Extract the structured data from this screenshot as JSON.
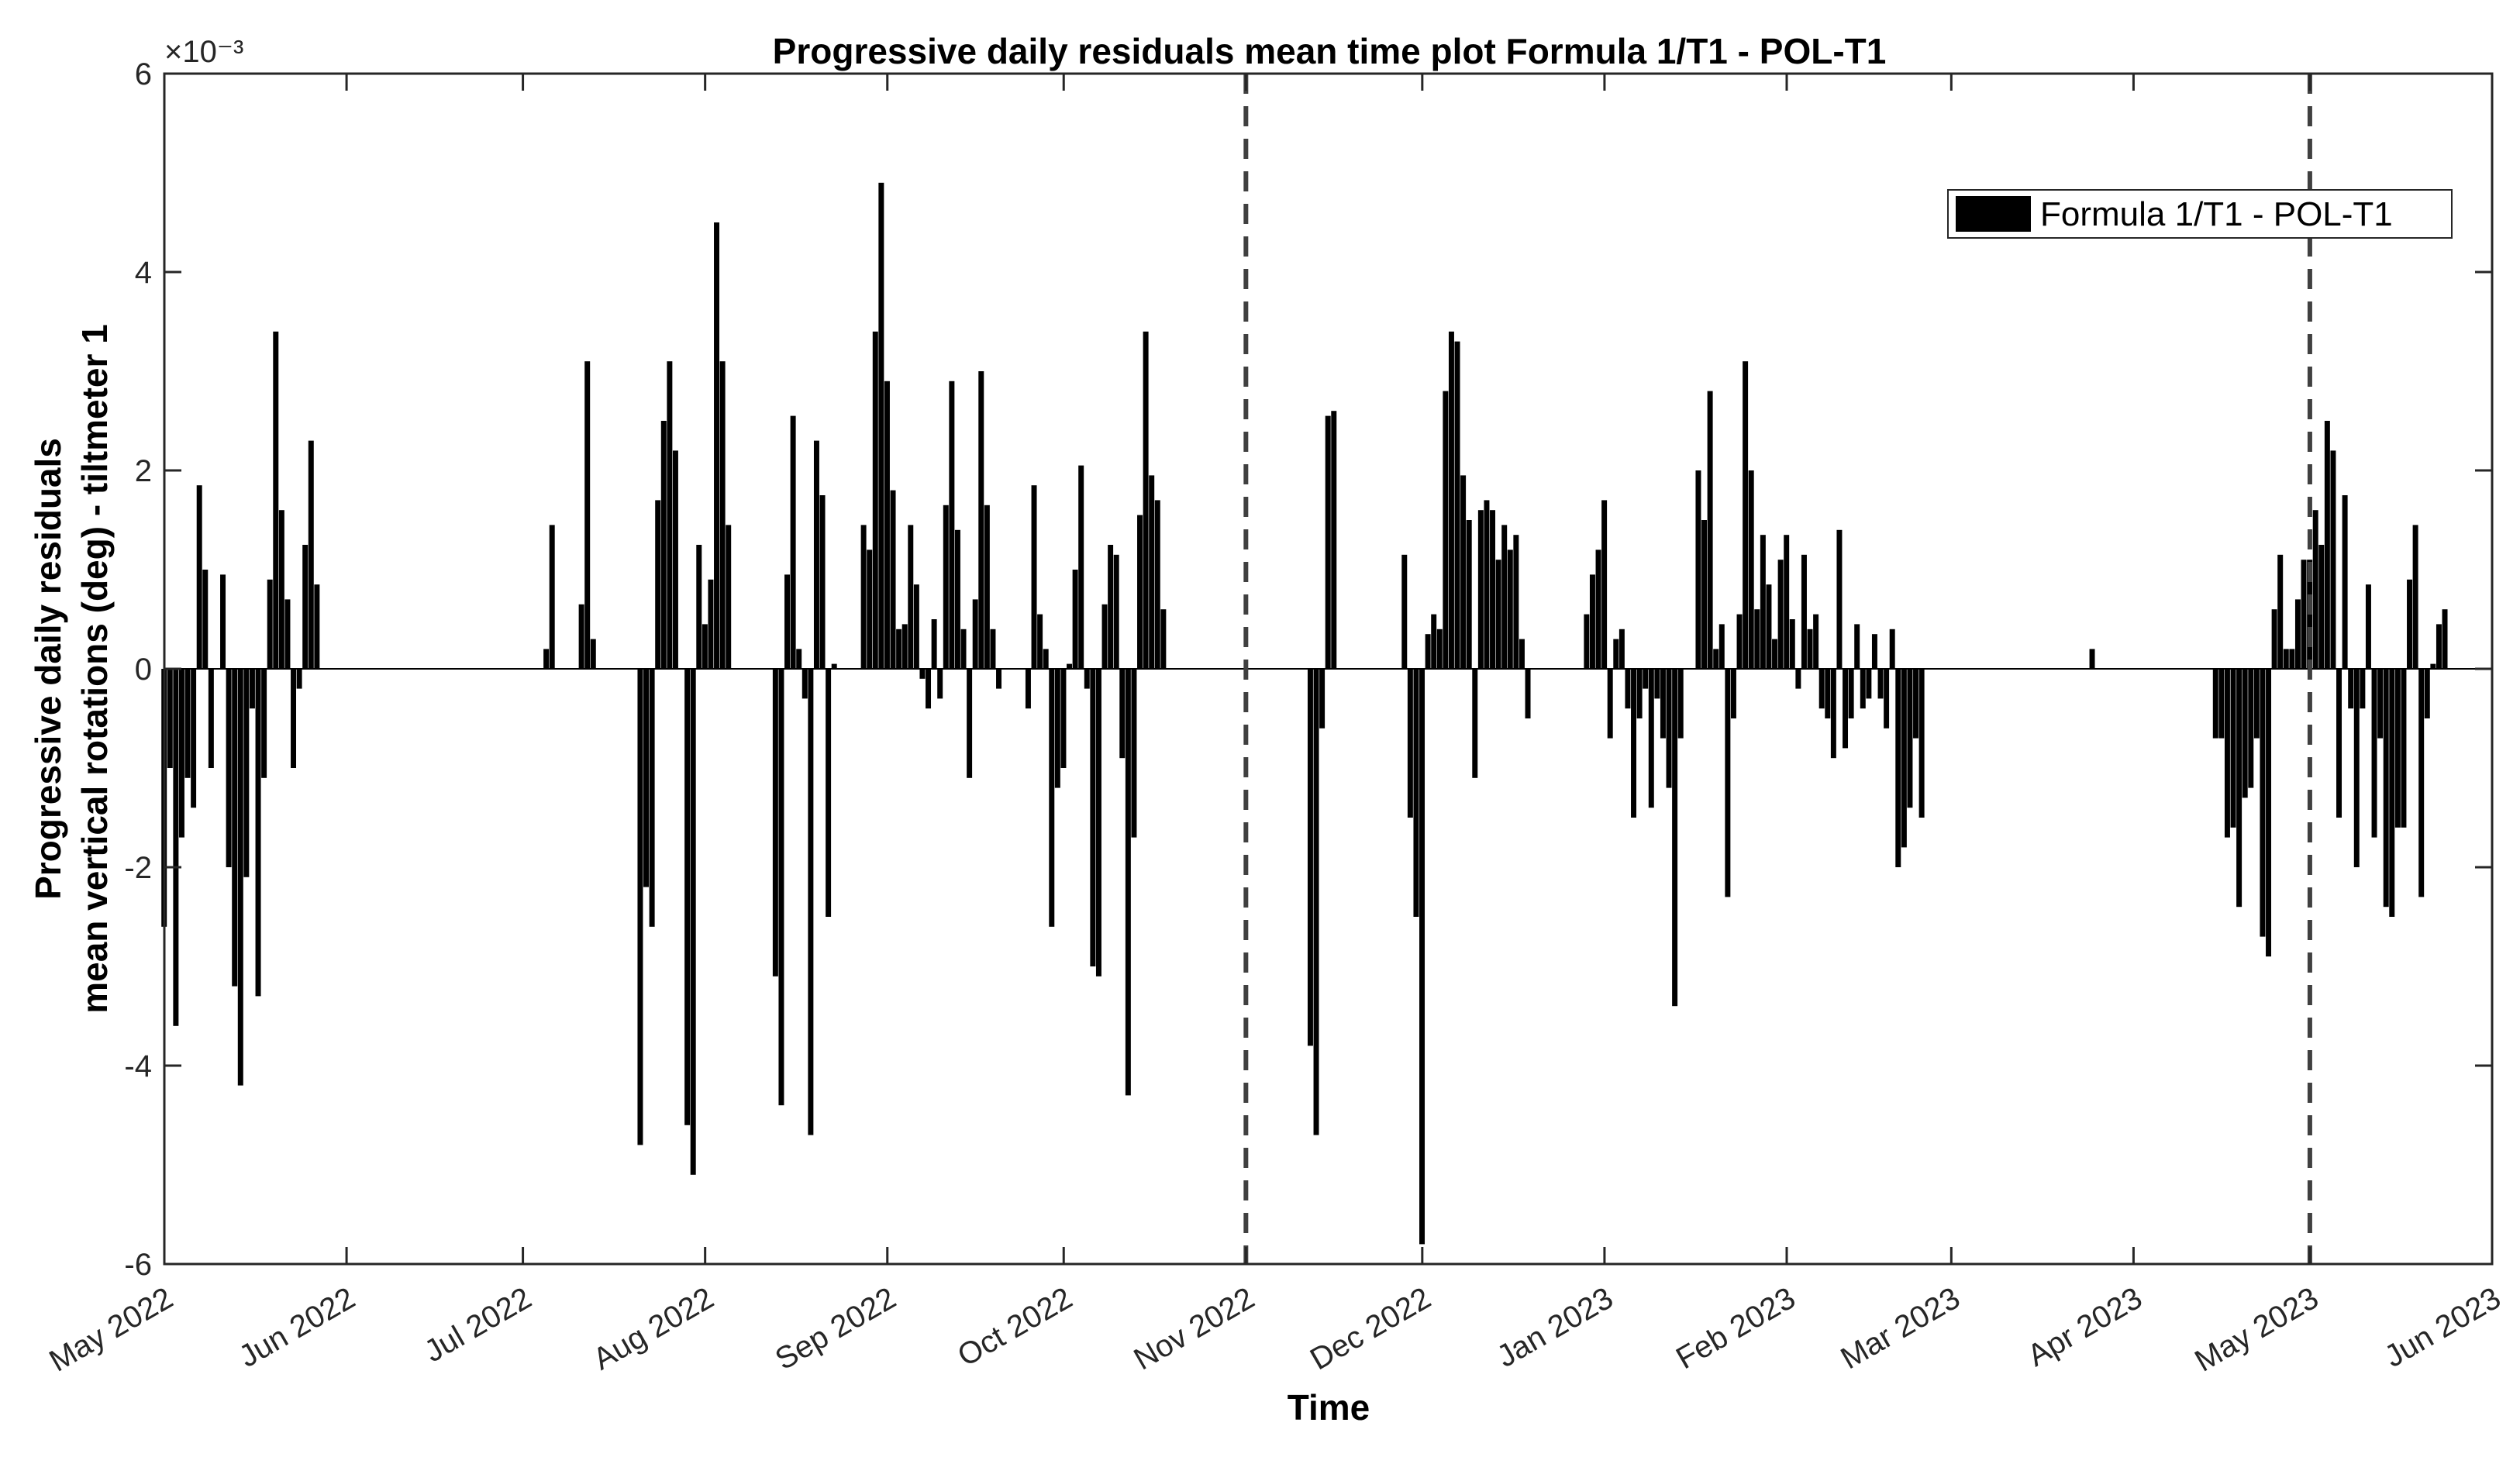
{
  "chart_data": {
    "type": "bar",
    "title": "Progressive daily residuals mean time plot Formula 1/T1 - POL-T1",
    "xlabel": "Time",
    "ylabel": [
      "Progressive daily residuals",
      "mean vertical rotations (deg) - tiltmeter 1"
    ],
    "y_exponent_label": "×10⁻³",
    "y_tick_labels": [
      "-6",
      "-4",
      "-2",
      "0",
      "2",
      "4",
      "6"
    ],
    "ylim": [
      -0.006,
      0.006
    ],
    "xlim": [
      "2022-05-01",
      "2023-06-01"
    ],
    "x_tick_labels": [
      "May 2022",
      "Jun 2022",
      "Jul 2022",
      "Aug 2022",
      "Sep 2022",
      "Oct 2022",
      "Nov 2022",
      "Dec 2022",
      "Jan 2023",
      "Feb 2023",
      "Mar 2023",
      "Apr 2023",
      "May 2023",
      "Jun 2023"
    ],
    "x_tick_dates": [
      "2022-05-01",
      "2022-06-01",
      "2022-07-01",
      "2022-08-01",
      "2022-09-01",
      "2022-10-01",
      "2022-11-01",
      "2022-12-01",
      "2023-01-01",
      "2023-02-01",
      "2023-03-01",
      "2023-04-01",
      "2023-05-01",
      "2023-06-01"
    ],
    "vertical_markers": [
      "2022-11-01",
      "2023-05-01"
    ],
    "grid": false,
    "legend_position": "top-right",
    "bar_color": "#000000",
    "series": [
      {
        "name": "Formula 1/T1 - POL-T1",
        "points": [
          [
            "2022-05-01",
            -0.0026
          ],
          [
            "2022-05-02",
            -0.001
          ],
          [
            "2022-05-03",
            -0.0036
          ],
          [
            "2022-05-04",
            -0.0017
          ],
          [
            "2022-05-05",
            -0.0011
          ],
          [
            "2022-05-06",
            -0.0014
          ],
          [
            "2022-05-07",
            0.00185
          ],
          [
            "2022-05-08",
            0.001
          ],
          [
            "2022-05-09",
            -0.001
          ],
          [
            "2022-05-11",
            0.00095
          ],
          [
            "2022-05-12",
            -0.002
          ],
          [
            "2022-05-13",
            -0.0032
          ],
          [
            "2022-05-14",
            -0.0042
          ],
          [
            "2022-05-15",
            -0.0021
          ],
          [
            "2022-05-16",
            -0.0004
          ],
          [
            "2022-05-17",
            -0.0033
          ],
          [
            "2022-05-18",
            -0.0011
          ],
          [
            "2022-05-19",
            0.0009
          ],
          [
            "2022-05-20",
            0.0034
          ],
          [
            "2022-05-21",
            0.0016
          ],
          [
            "2022-05-22",
            0.0007
          ],
          [
            "2022-05-23",
            -0.001
          ],
          [
            "2022-05-24",
            -0.0002
          ],
          [
            "2022-05-25",
            0.00125
          ],
          [
            "2022-05-26",
            0.0023
          ],
          [
            "2022-05-27",
            0.00085
          ],
          [
            "2022-07-05",
            0.0002
          ],
          [
            "2022-07-06",
            0.00145
          ],
          [
            "2022-07-11",
            0.00065
          ],
          [
            "2022-07-12",
            0.0031
          ],
          [
            "2022-07-13",
            0.0003
          ],
          [
            "2022-07-21",
            -0.0048
          ],
          [
            "2022-07-22",
            -0.0022
          ],
          [
            "2022-07-23",
            -0.0026
          ],
          [
            "2022-07-24",
            0.0017
          ],
          [
            "2022-07-25",
            0.0025
          ],
          [
            "2022-07-26",
            0.0031
          ],
          [
            "2022-07-27",
            0.0022
          ],
          [
            "2022-07-29",
            -0.0046
          ],
          [
            "2022-07-30",
            -0.0051
          ],
          [
            "2022-07-31",
            0.00125
          ],
          [
            "2022-08-01",
            0.00045
          ],
          [
            "2022-08-02",
            0.0009
          ],
          [
            "2022-08-03",
            0.0045
          ],
          [
            "2022-08-04",
            0.0031
          ],
          [
            "2022-08-05",
            0.00145
          ],
          [
            "2022-08-13",
            -0.0031
          ],
          [
            "2022-08-14",
            -0.0044
          ],
          [
            "2022-08-15",
            0.00095
          ],
          [
            "2022-08-16",
            0.00255
          ],
          [
            "2022-08-17",
            0.0002
          ],
          [
            "2022-08-18",
            -0.0003
          ],
          [
            "2022-08-19",
            -0.0047
          ],
          [
            "2022-08-20",
            0.0023
          ],
          [
            "2022-08-21",
            0.00175
          ],
          [
            "2022-08-22",
            -0.0025
          ],
          [
            "2022-08-23",
            5e-05
          ],
          [
            "2022-08-28",
            0.00145
          ],
          [
            "2022-08-29",
            0.0012
          ],
          [
            "2022-08-30",
            0.0034
          ],
          [
            "2022-08-31",
            0.0049
          ],
          [
            "2022-09-01",
            0.0029
          ],
          [
            "2022-09-02",
            0.0018
          ],
          [
            "2022-09-03",
            0.0004
          ],
          [
            "2022-09-04",
            0.00045
          ],
          [
            "2022-09-05",
            0.00145
          ],
          [
            "2022-09-06",
            0.00085
          ],
          [
            "2022-09-07",
            -0.0001
          ],
          [
            "2022-09-08",
            -0.0004
          ],
          [
            "2022-09-09",
            0.0005
          ],
          [
            "2022-09-10",
            -0.0003
          ],
          [
            "2022-09-11",
            0.00165
          ],
          [
            "2022-09-12",
            0.0029
          ],
          [
            "2022-09-13",
            0.0014
          ],
          [
            "2022-09-14",
            0.0004
          ],
          [
            "2022-09-15",
            -0.0011
          ],
          [
            "2022-09-16",
            0.0007
          ],
          [
            "2022-09-17",
            0.003
          ],
          [
            "2022-09-18",
            0.00165
          ],
          [
            "2022-09-19",
            0.0004
          ],
          [
            "2022-09-20",
            -0.0002
          ],
          [
            "2022-09-25",
            -0.0004
          ],
          [
            "2022-09-26",
            0.00185
          ],
          [
            "2022-09-27",
            0.00055
          ],
          [
            "2022-09-28",
            0.0002
          ],
          [
            "2022-09-29",
            -0.0026
          ],
          [
            "2022-09-30",
            -0.0012
          ],
          [
            "2022-10-01",
            -0.001
          ],
          [
            "2022-10-02",
            5e-05
          ],
          [
            "2022-10-03",
            0.001
          ],
          [
            "2022-10-04",
            0.00205
          ],
          [
            "2022-10-05",
            -0.0002
          ],
          [
            "2022-10-06",
            -0.003
          ],
          [
            "2022-10-07",
            -0.0031
          ],
          [
            "2022-10-08",
            0.00065
          ],
          [
            "2022-10-09",
            0.00125
          ],
          [
            "2022-10-10",
            0.00115
          ],
          [
            "2022-10-11",
            -0.0009
          ],
          [
            "2022-10-12",
            -0.0043
          ],
          [
            "2022-10-13",
            -0.0017
          ],
          [
            "2022-10-14",
            0.00155
          ],
          [
            "2022-10-15",
            0.0034
          ],
          [
            "2022-10-16",
            0.00195
          ],
          [
            "2022-10-17",
            0.0017
          ],
          [
            "2022-10-18",
            0.0006
          ],
          [
            "2022-11-12",
            -0.0038
          ],
          [
            "2022-11-13",
            -0.0047
          ],
          [
            "2022-11-14",
            -0.0006
          ],
          [
            "2022-11-15",
            0.00255
          ],
          [
            "2022-11-16",
            0.0026
          ],
          [
            "2022-11-28",
            0.00115
          ],
          [
            "2022-11-29",
            -0.0015
          ],
          [
            "2022-11-30",
            -0.0025
          ],
          [
            "2022-12-01",
            -0.0058
          ],
          [
            "2022-12-02",
            0.00035
          ],
          [
            "2022-12-03",
            0.00055
          ],
          [
            "2022-12-04",
            0.0004
          ],
          [
            "2022-12-05",
            0.0028
          ],
          [
            "2022-12-06",
            0.0034
          ],
          [
            "2022-12-07",
            0.0033
          ],
          [
            "2022-12-08",
            0.00195
          ],
          [
            "2022-12-09",
            0.0015
          ],
          [
            "2022-12-10",
            -0.0011
          ],
          [
            "2022-12-11",
            0.0016
          ],
          [
            "2022-12-12",
            0.0017
          ],
          [
            "2022-12-13",
            0.0016
          ],
          [
            "2022-12-14",
            0.0011
          ],
          [
            "2022-12-15",
            0.00145
          ],
          [
            "2022-12-16",
            0.0012
          ],
          [
            "2022-12-17",
            0.00135
          ],
          [
            "2022-12-18",
            0.0003
          ],
          [
            "2022-12-19",
            -0.0005
          ],
          [
            "2022-12-29",
            0.00055
          ],
          [
            "2022-12-30",
            0.00095
          ],
          [
            "2022-12-31",
            0.0012
          ],
          [
            "2023-01-01",
            0.0017
          ],
          [
            "2023-01-02",
            -0.0007
          ],
          [
            "2023-01-03",
            0.0003
          ],
          [
            "2023-01-04",
            0.0004
          ],
          [
            "2023-01-05",
            -0.0004
          ],
          [
            "2023-01-06",
            -0.0015
          ],
          [
            "2023-01-07",
            -0.0005
          ],
          [
            "2023-01-08",
            -0.0002
          ],
          [
            "2023-01-09",
            -0.0014
          ],
          [
            "2023-01-10",
            -0.0003
          ],
          [
            "2023-01-11",
            -0.0007
          ],
          [
            "2023-01-12",
            -0.0012
          ],
          [
            "2023-01-13",
            -0.0034
          ],
          [
            "2023-01-14",
            -0.0007
          ],
          [
            "2023-01-17",
            0.002
          ],
          [
            "2023-01-18",
            0.0015
          ],
          [
            "2023-01-19",
            0.0028
          ],
          [
            "2023-01-20",
            0.0002
          ],
          [
            "2023-01-21",
            0.00045
          ],
          [
            "2023-01-22",
            -0.0023
          ],
          [
            "2023-01-23",
            -0.0005
          ],
          [
            "2023-01-24",
            0.00055
          ],
          [
            "2023-01-25",
            0.0031
          ],
          [
            "2023-01-26",
            0.002
          ],
          [
            "2023-01-27",
            0.0006
          ],
          [
            "2023-01-28",
            0.00135
          ],
          [
            "2023-01-29",
            0.00085
          ],
          [
            "2023-01-30",
            0.0003
          ],
          [
            "2023-01-31",
            0.0011
          ],
          [
            "2023-02-01",
            0.00135
          ],
          [
            "2023-02-02",
            0.0005
          ],
          [
            "2023-02-03",
            -0.0002
          ],
          [
            "2023-02-04",
            0.00115
          ],
          [
            "2023-02-05",
            0.0004
          ],
          [
            "2023-02-06",
            0.00055
          ],
          [
            "2023-02-07",
            -0.0004
          ],
          [
            "2023-02-08",
            -0.0005
          ],
          [
            "2023-02-09",
            -0.0009
          ],
          [
            "2023-02-10",
            0.0014
          ],
          [
            "2023-02-11",
            -0.0008
          ],
          [
            "2023-02-12",
            -0.0005
          ],
          [
            "2023-02-13",
            0.00045
          ],
          [
            "2023-02-14",
            -0.0004
          ],
          [
            "2023-02-15",
            -0.0003
          ],
          [
            "2023-02-16",
            0.00035
          ],
          [
            "2023-02-17",
            -0.0003
          ],
          [
            "2023-02-18",
            -0.0006
          ],
          [
            "2023-02-19",
            0.0004
          ],
          [
            "2023-02-20",
            -0.002
          ],
          [
            "2023-02-21",
            -0.0018
          ],
          [
            "2023-02-22",
            -0.0014
          ],
          [
            "2023-02-23",
            -0.0007
          ],
          [
            "2023-02-24",
            -0.0015
          ],
          [
            "2023-03-25",
            0.0002
          ],
          [
            "2023-04-15",
            -0.0007
          ],
          [
            "2023-04-16",
            -0.0007
          ],
          [
            "2023-04-17",
            -0.0017
          ],
          [
            "2023-04-18",
            -0.0016
          ],
          [
            "2023-04-19",
            -0.0024
          ],
          [
            "2023-04-20",
            -0.0013
          ],
          [
            "2023-04-21",
            -0.0012
          ],
          [
            "2023-04-22",
            -0.0007
          ],
          [
            "2023-04-23",
            -0.0027
          ],
          [
            "2023-04-24",
            -0.0029
          ],
          [
            "2023-04-25",
            0.0006
          ],
          [
            "2023-04-26",
            0.00115
          ],
          [
            "2023-04-27",
            0.0002
          ],
          [
            "2023-04-28",
            0.0002
          ],
          [
            "2023-04-29",
            0.0007
          ],
          [
            "2023-04-30",
            0.0011
          ],
          [
            "2023-05-01",
            0.0011
          ],
          [
            "2023-05-02",
            0.0016
          ],
          [
            "2023-05-03",
            0.00125
          ],
          [
            "2023-05-04",
            0.0025
          ],
          [
            "2023-05-05",
            0.0022
          ],
          [
            "2023-05-06",
            -0.0015
          ],
          [
            "2023-05-07",
            0.00175
          ],
          [
            "2023-05-08",
            -0.0004
          ],
          [
            "2023-05-09",
            -0.002
          ],
          [
            "2023-05-10",
            -0.0004
          ],
          [
            "2023-05-11",
            0.00085
          ],
          [
            "2023-05-12",
            -0.0017
          ],
          [
            "2023-05-13",
            -0.0007
          ],
          [
            "2023-05-14",
            -0.0024
          ],
          [
            "2023-05-15",
            -0.0025
          ],
          [
            "2023-05-16",
            -0.0016
          ],
          [
            "2023-05-17",
            -0.0016
          ],
          [
            "2023-05-18",
            0.0009
          ],
          [
            "2023-05-19",
            0.00145
          ],
          [
            "2023-05-20",
            -0.0023
          ],
          [
            "2023-05-21",
            -0.0005
          ],
          [
            "2023-05-22",
            5e-05
          ],
          [
            "2023-05-23",
            0.00045
          ],
          [
            "2023-05-24",
            0.0006
          ]
        ]
      }
    ]
  }
}
